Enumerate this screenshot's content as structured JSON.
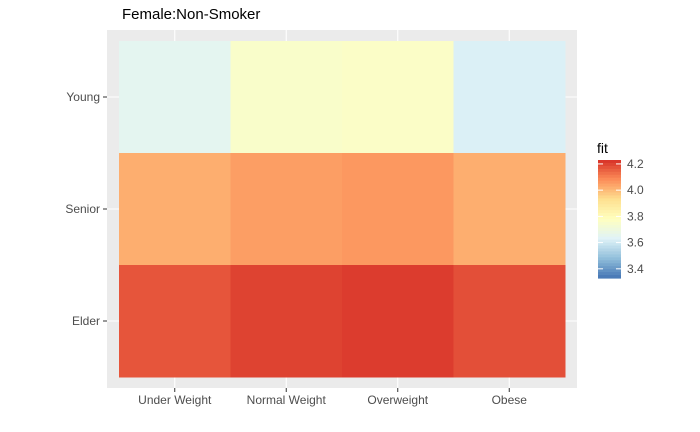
{
  "chart_data": {
    "type": "heatmap",
    "title": "Female:Non-Smoker",
    "xlabel": "",
    "ylabel": "",
    "x_categories": [
      "Under Weight",
      "Normal Weight",
      "Overweight",
      "Obese"
    ],
    "y_categories": [
      "Young",
      "Senior",
      "Elder"
    ],
    "values": [
      [
        3.65,
        3.75,
        3.76,
        3.62
      ],
      [
        4.02,
        4.05,
        4.06,
        4.02
      ],
      [
        4.17,
        4.2,
        4.21,
        4.18
      ]
    ],
    "legend": {
      "title": "fit",
      "ticks": [
        3.4,
        3.6,
        3.8,
        4.0,
        4.2
      ],
      "range": [
        3.33,
        4.23
      ],
      "palette": [
        "#4575b4",
        "#91bfdb",
        "#e0f3f8",
        "#ffffbf",
        "#fee090",
        "#fc8d59",
        "#d73027"
      ]
    },
    "grid": true,
    "legend_position": "right"
  }
}
